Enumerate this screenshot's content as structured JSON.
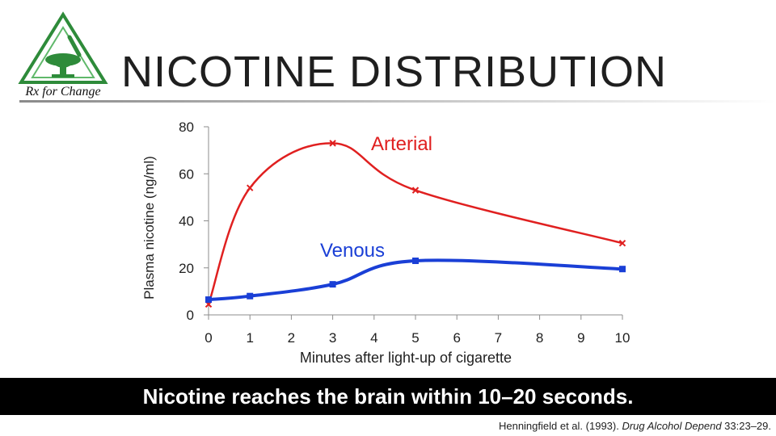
{
  "title": "NICOTINE DISTRIBUTION",
  "logo": {
    "text": "Rx for Change"
  },
  "colors": {
    "arterial": "#e02020",
    "venous": "#1a3fd6",
    "banner": "#000000"
  },
  "chart_data": {
    "type": "line",
    "xlabel": "Minutes after light-up of cigarette",
    "ylabel": "Plasma nicotine (ng/ml)",
    "xlim": [
      0,
      10
    ],
    "ylim": [
      0,
      80
    ],
    "x_ticks": [
      "0",
      "1",
      "2",
      "3",
      "4",
      "5",
      "6",
      "7",
      "8",
      "9",
      "10"
    ],
    "y_ticks": [
      "0",
      "20",
      "40",
      "60",
      "80"
    ],
    "grid": false,
    "series": [
      {
        "name": "Arterial",
        "color": "#e02020",
        "marker": "x",
        "x": [
          0,
          1,
          3,
          5,
          10
        ],
        "y": [
          4.5,
          54,
          73,
          53,
          30.5
        ]
      },
      {
        "name": "Venous",
        "color": "#1a3fd6",
        "marker": "square",
        "x": [
          0,
          1,
          3,
          5,
          10
        ],
        "y": [
          6.5,
          8,
          13,
          23,
          19.5
        ]
      }
    ]
  },
  "banner": {
    "text": "Nicotine reaches the brain within 10–20 seconds."
  },
  "citation": {
    "authors": "Henningfield et al. (1993). ",
    "journal": "Drug Alcohol Depend",
    "ref": " 33:23–29."
  }
}
